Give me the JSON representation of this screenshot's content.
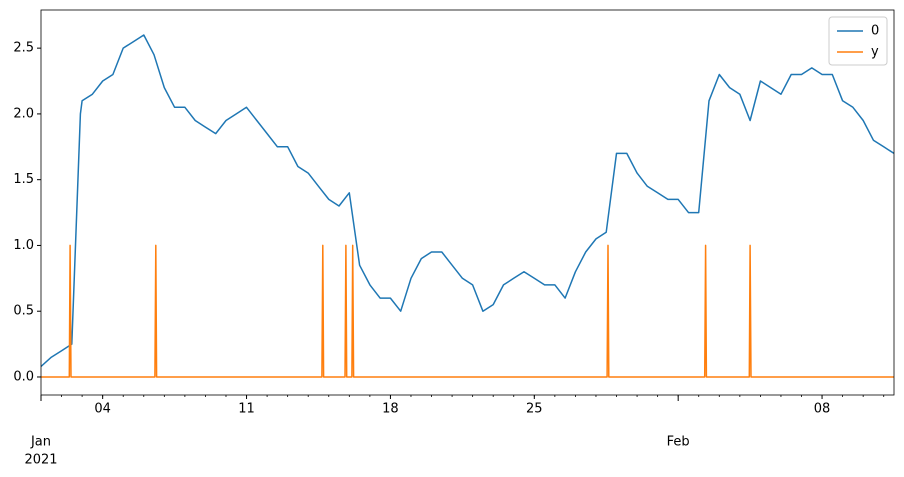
{
  "chart_data": {
    "type": "line",
    "xlim": [
      "2021-01-01T00:00",
      "2021-02-11T12:00"
    ],
    "ylim": [
      -0.137,
      2.79
    ],
    "yticks": [
      {
        "value": 0,
        "label": "0.0"
      },
      {
        "value": 0.5,
        "label": "0.5"
      },
      {
        "value": 1,
        "label": "1.0"
      },
      {
        "value": 1.5,
        "label": "1.5"
      },
      {
        "value": 2,
        "label": "2.0"
      },
      {
        "value": 2.5,
        "label": "2.5"
      }
    ],
    "xticks": [
      {
        "value": "2021-01-04T00:00",
        "label": "04"
      },
      {
        "value": "2021-01-11T00:00",
        "label": "11"
      },
      {
        "value": "2021-01-18T00:00",
        "label": "18"
      },
      {
        "value": "2021-01-25T00:00",
        "label": "25"
      },
      {
        "value": "2021-02-08T00:00",
        "label": "08"
      }
    ],
    "xticks_month": [
      {
        "value": "2021-01-01T00:00",
        "label": "Jan"
      },
      {
        "value": "2021-02-01T00:00",
        "label": "Feb"
      }
    ],
    "xtick_year": {
      "value": "2021-01-01T00:00",
      "label": "2021"
    },
    "legend": "upper right",
    "series": [
      {
        "name": "0",
        "color": "#1f77b4",
        "x": [
          "2021-01-01T00:00",
          "2021-01-01T12:00",
          "2021-01-02T00:00",
          "2021-01-02T12:00",
          "2021-01-02T22:00",
          "2021-01-03T00:00",
          "2021-01-03T12:00",
          "2021-01-04T00:00",
          "2021-01-04T12:00",
          "2021-01-05T00:00",
          "2021-01-05T12:00",
          "2021-01-06T00:00",
          "2021-01-06T12:00",
          "2021-01-07T00:00",
          "2021-01-07T12:00",
          "2021-01-08T00:00",
          "2021-01-08T12:00",
          "2021-01-09T00:00",
          "2021-01-09T12:00",
          "2021-01-10T00:00",
          "2021-01-10T12:00",
          "2021-01-11T00:00",
          "2021-01-11T12:00",
          "2021-01-12T00:00",
          "2021-01-12T12:00",
          "2021-01-13T00:00",
          "2021-01-13T12:00",
          "2021-01-14T00:00",
          "2021-01-14T12:00",
          "2021-01-15T00:00",
          "2021-01-15T12:00",
          "2021-01-16T00:00",
          "2021-01-16T12:00",
          "2021-01-17T00:00",
          "2021-01-17T12:00",
          "2021-01-18T00:00",
          "2021-01-18T12:00",
          "2021-01-19T00:00",
          "2021-01-19T12:00",
          "2021-01-20T00:00",
          "2021-01-20T12:00",
          "2021-01-21T00:00",
          "2021-01-21T12:00",
          "2021-01-22T00:00",
          "2021-01-22T12:00",
          "2021-01-23T00:00",
          "2021-01-23T12:00",
          "2021-01-24T00:00",
          "2021-01-24T12:00",
          "2021-01-25T00:00",
          "2021-01-25T12:00",
          "2021-01-26T00:00",
          "2021-01-26T12:00",
          "2021-01-27T00:00",
          "2021-01-27T12:00",
          "2021-01-28T00:00",
          "2021-01-28T12:00",
          "2021-01-29T00:00",
          "2021-01-29T12:00",
          "2021-01-30T00:00",
          "2021-01-30T12:00",
          "2021-01-31T00:00",
          "2021-01-31T12:00",
          "2021-02-01T00:00",
          "2021-02-01T12:00",
          "2021-02-02T00:00",
          "2021-02-02T12:00",
          "2021-02-03T00:00",
          "2021-02-03T12:00",
          "2021-02-04T00:00",
          "2021-02-04T12:00",
          "2021-02-05T00:00",
          "2021-02-05T12:00",
          "2021-02-06T00:00",
          "2021-02-06T12:00",
          "2021-02-07T00:00",
          "2021-02-07T12:00",
          "2021-02-08T00:00",
          "2021-02-08T12:00",
          "2021-02-09T00:00",
          "2021-02-09T12:00",
          "2021-02-10T00:00",
          "2021-02-10T12:00",
          "2021-02-11T00:00",
          "2021-02-11T12:00"
        ],
        "values": [
          0.08,
          0.15,
          0.2,
          0.25,
          2.0,
          2.1,
          2.15,
          2.25,
          2.3,
          2.5,
          2.55,
          2.6,
          2.45,
          2.2,
          2.05,
          2.05,
          1.95,
          1.9,
          1.85,
          1.95,
          2.0,
          2.05,
          1.95,
          1.85,
          1.75,
          1.75,
          1.6,
          1.55,
          1.45,
          1.35,
          1.3,
          1.4,
          0.85,
          0.7,
          0.6,
          0.6,
          0.5,
          0.75,
          0.9,
          0.95,
          0.95,
          0.85,
          0.75,
          0.7,
          0.5,
          0.55,
          0.7,
          0.75,
          0.8,
          0.75,
          0.7,
          0.7,
          0.6,
          0.8,
          0.95,
          1.05,
          1.1,
          1.7,
          1.7,
          1.55,
          1.45,
          1.4,
          1.35,
          1.35,
          1.25,
          1.25,
          2.1,
          2.3,
          2.2,
          2.15,
          1.95,
          2.25,
          2.2,
          2.15,
          2.3,
          2.3,
          2.35,
          2.3,
          2.3,
          2.1,
          2.05,
          1.95,
          1.8,
          1.75,
          1.7
        ]
      },
      {
        "name": "y",
        "color": "#ff7f0e",
        "x": [
          "2021-01-01T00:00",
          "2021-01-02T09:00",
          "2021-01-02T10:00",
          "2021-01-02T11:00",
          "2021-01-06T13:00",
          "2021-01-06T14:00",
          "2021-01-06T15:00",
          "2021-01-14T16:00",
          "2021-01-14T17:00",
          "2021-01-14T18:00",
          "2021-01-15T19:00",
          "2021-01-15T20:00",
          "2021-01-15T21:00",
          "2021-01-16T03:00",
          "2021-01-16T04:00",
          "2021-01-16T05:00",
          "2021-01-28T13:00",
          "2021-01-28T14:00",
          "2021-01-28T15:00",
          "2021-02-02T07:00",
          "2021-02-02T08:00",
          "2021-02-02T09:00",
          "2021-02-04T11:00",
          "2021-02-04T12:00",
          "2021-02-04T13:00",
          "2021-02-11T12:00"
        ],
        "values": [
          0,
          0,
          1,
          0,
          0,
          1,
          0,
          0,
          1,
          0,
          0,
          1,
          0,
          0,
          1,
          0,
          0,
          1,
          0,
          0,
          1,
          0,
          0,
          1,
          0,
          0
        ]
      }
    ]
  }
}
